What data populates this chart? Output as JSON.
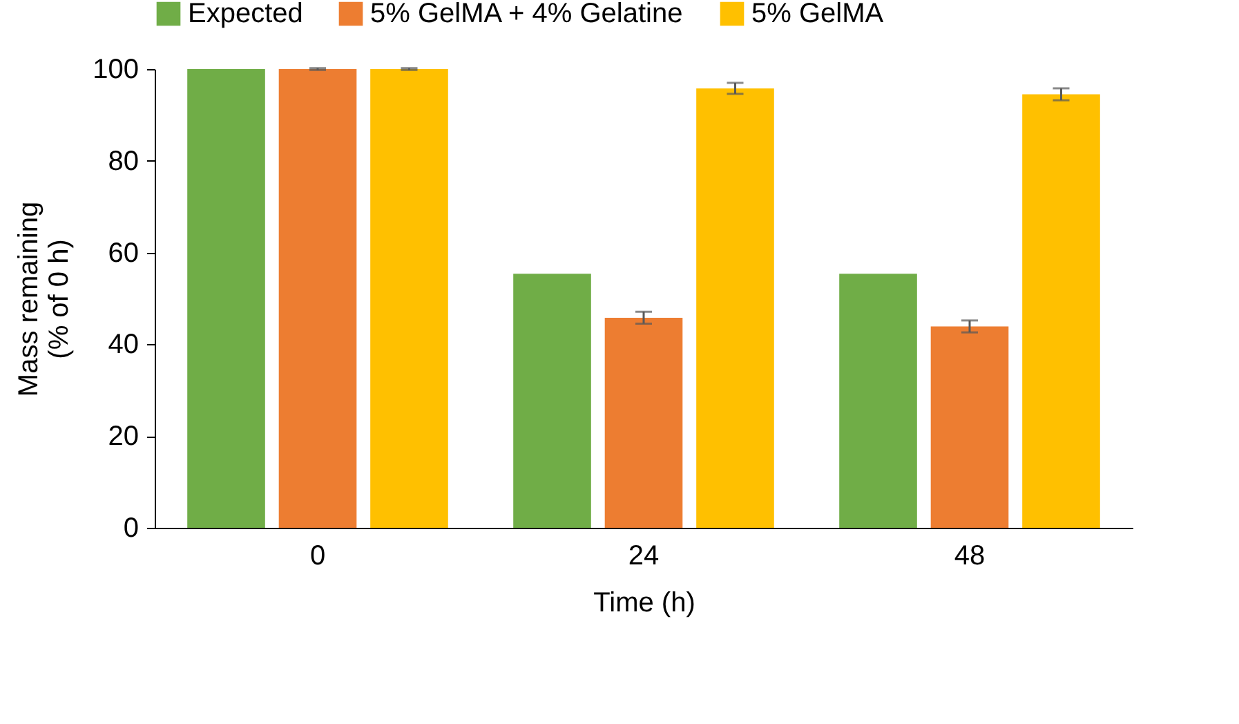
{
  "chart_data": {
    "type": "bar",
    "xlabel": "Time (h)",
    "ylabel": "Mass remaining\n(% of 0 h)",
    "categories": [
      "0",
      "24",
      "48"
    ],
    "series": [
      {
        "name": "Expected",
        "color": "#70ad47",
        "values": [
          100,
          55.4,
          55.4
        ]
      },
      {
        "name": "5% GelMA + 4% Gelatine",
        "color": "#ed7d31",
        "values": [
          100,
          45.8,
          43.9
        ],
        "errors": [
          0.2,
          1.3,
          1.3
        ]
      },
      {
        "name": "5% GelMA",
        "color": "#ffc000",
        "values": [
          100,
          95.8,
          94.5
        ],
        "errors": [
          0.2,
          1.2,
          1.3
        ]
      }
    ],
    "ylim": [
      0,
      100
    ],
    "yticks": [
      0,
      20,
      40,
      60,
      80,
      100
    ],
    "grid": false,
    "legend": "top"
  }
}
